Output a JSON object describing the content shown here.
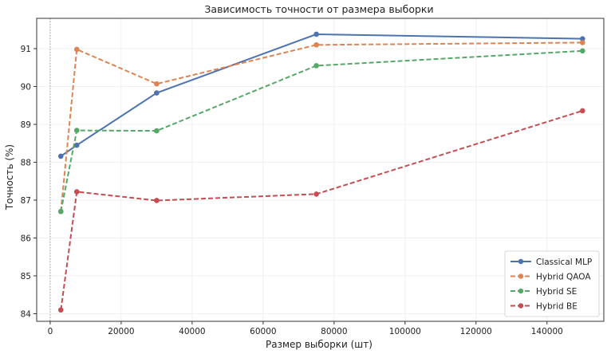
{
  "chart_data": {
    "type": "line",
    "title": "Зависимость точности от размера выборки",
    "xlabel": "Размер выборки (шт)",
    "ylabel": "Точность (%)",
    "xlim": [
      -3800,
      156000
    ],
    "ylim": [
      83.8,
      91.8
    ],
    "xticks": [
      0,
      20000,
      40000,
      60000,
      80000,
      100000,
      120000,
      140000
    ],
    "yticks": [
      84,
      85,
      86,
      87,
      88,
      89,
      90,
      91
    ],
    "grid": true,
    "legend_position": "lower-right",
    "reference_line_x": 0,
    "x": [
      3000,
      7500,
      30000,
      75000,
      150000
    ],
    "series": [
      {
        "name": "Classical MLP",
        "values": [
          88.16,
          88.45,
          89.83,
          91.38,
          91.26
        ],
        "color": "#4c72b0",
        "style": "solid"
      },
      {
        "name": "Hybrid QAOA",
        "values": [
          86.7,
          90.98,
          90.07,
          91.1,
          91.16
        ],
        "color": "#dd8452",
        "style": "dashed"
      },
      {
        "name": "Hybrid SE",
        "values": [
          86.7,
          88.84,
          88.83,
          90.55,
          90.94
        ],
        "color": "#55a868",
        "style": "dashed"
      },
      {
        "name": "Hybrid BE",
        "values": [
          84.1,
          87.22,
          86.99,
          87.16,
          89.36
        ],
        "color": "#c44e52",
        "style": "dashed"
      }
    ]
  }
}
